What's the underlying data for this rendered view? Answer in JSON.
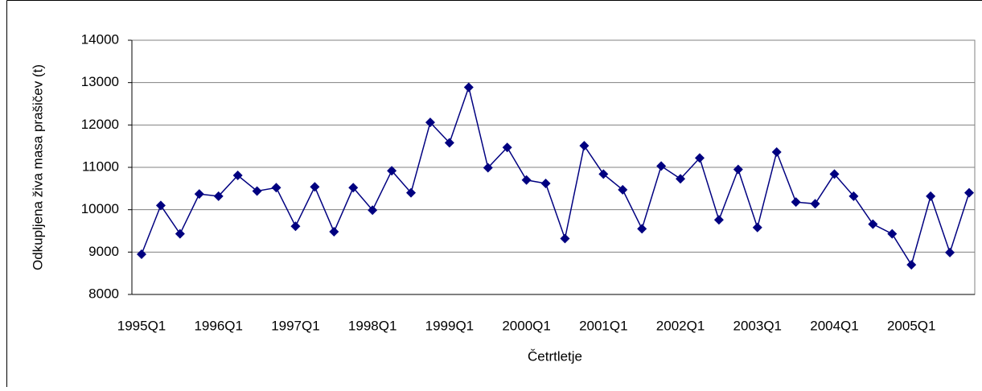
{
  "chart_data": {
    "type": "line",
    "x_label": "Četrtletje",
    "y_label": "Odkupljena živa masa prašičev (t)",
    "categories": [
      "1995Q1",
      null,
      null,
      null,
      "1996Q1",
      null,
      null,
      null,
      "1997Q1",
      null,
      null,
      null,
      "1998Q1",
      null,
      null,
      null,
      "1999Q1",
      null,
      null,
      null,
      "2000Q1",
      null,
      null,
      null,
      "2001Q1",
      null,
      null,
      null,
      "2002Q1",
      null,
      null,
      null,
      "2003Q1",
      null,
      null,
      null,
      "2004Q1",
      null,
      null,
      null,
      "2005Q1",
      null,
      null,
      null
    ],
    "series": [
      {
        "name": "Odkupljena živa masa prašičev (t)",
        "color": "#000080",
        "values": [
          8950,
          10100,
          9430,
          10370,
          10320,
          10810,
          10440,
          10520,
          9610,
          10540,
          9480,
          10520,
          9990,
          10920,
          10400,
          12060,
          11580,
          12890,
          10990,
          11470,
          10700,
          10620,
          9320,
          11510,
          10840,
          10470,
          9550,
          11030,
          10730,
          11220,
          9760,
          10950,
          9580,
          11360,
          10180,
          10140,
          10840,
          10320,
          9660,
          9430,
          8700,
          10320,
          8990,
          10400
        ]
      }
    ],
    "ylim": [
      8000,
      14000
    ],
    "yticks": [
      8000,
      9000,
      10000,
      11000,
      12000,
      13000,
      14000
    ],
    "grid": true
  }
}
